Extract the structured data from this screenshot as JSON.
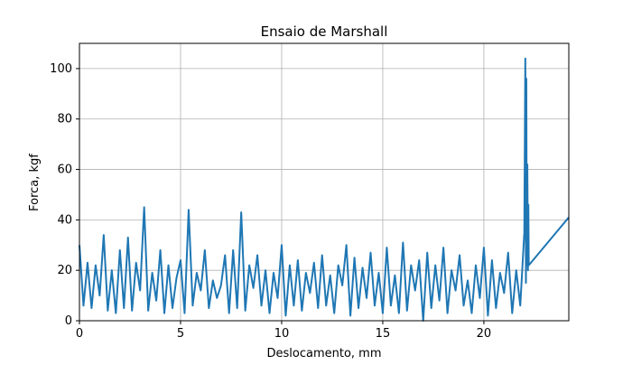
{
  "chart_data": {
    "type": "line",
    "title": "Ensaio de Marshall",
    "x_label": "Deslocamento, mm",
    "y_label": "Forca, kgf",
    "x": [
      0,
      0.2,
      0.4,
      0.6,
      0.8,
      1,
      1.2,
      1.4,
      1.6,
      1.8,
      2,
      2.2,
      2.4,
      2.6,
      2.8,
      3,
      3.2,
      3.4,
      3.6,
      3.8,
      4,
      4.2,
      4.4,
      4.6,
      4.8,
      5,
      5.2,
      5.4,
      5.6,
      5.8,
      6,
      6.2,
      6.4,
      6.6,
      6.8,
      7,
      7.2,
      7.4,
      7.6,
      7.8,
      8,
      8.2,
      8.4,
      8.6,
      8.8,
      9,
      9.2,
      9.4,
      9.6,
      9.8,
      10,
      10.2,
      10.4,
      10.6,
      10.8,
      11,
      11.2,
      11.4,
      11.6,
      11.8,
      12,
      12.2,
      12.4,
      12.6,
      12.8,
      13,
      13.2,
      13.4,
      13.6,
      13.8,
      14,
      14.2,
      14.4,
      14.6,
      14.8,
      15,
      15.2,
      15.4,
      15.6,
      15.8,
      16,
      16.2,
      16.4,
      16.6,
      16.8,
      17,
      17.2,
      17.4,
      17.6,
      17.8,
      18,
      18.2,
      18.4,
      18.6,
      18.8,
      19,
      19.2,
      19.4,
      19.6,
      19.8,
      20,
      20.2,
      20.4,
      20.6,
      20.8,
      21,
      21.2,
      21.4,
      21.6,
      21.8,
      22,
      22.05,
      22.08,
      22.1,
      22.12,
      22.15,
      22.18,
      22.2,
      22.22,
      24.2
    ],
    "series": [
      {
        "name": "Forca",
        "color": "#1f77b4",
        "values": [
          30,
          6,
          23,
          5,
          22,
          10,
          34,
          4,
          20,
          3,
          28,
          5,
          33,
          4,
          23,
          12,
          45,
          4,
          19,
          8,
          28,
          3,
          22,
          5,
          17,
          24,
          3,
          44,
          6,
          19,
          12,
          28,
          5,
          16,
          9,
          14,
          26,
          3,
          28,
          5,
          43,
          4,
          22,
          13,
          26,
          6,
          20,
          3,
          19,
          9,
          30,
          2,
          22,
          6,
          24,
          4,
          19,
          11,
          23,
          5,
          26,
          6,
          18,
          3,
          22,
          14,
          30,
          2,
          25,
          5,
          21,
          9,
          27,
          6,
          19,
          3,
          29,
          6,
          18,
          3,
          31,
          4,
          22,
          12,
          24,
          0,
          27,
          5,
          22,
          8,
          29,
          3,
          20,
          12,
          26,
          6,
          16,
          3,
          22,
          9,
          29,
          2,
          24,
          5,
          19,
          11,
          27,
          3,
          20,
          6,
          35,
          104,
          15,
          96,
          22,
          62,
          20,
          46,
          22,
          41
        ]
      }
    ],
    "xlim": [
      0,
      24.2
    ],
    "ylim": [
      0,
      110
    ],
    "xticks": [
      0,
      5,
      10,
      15,
      20
    ],
    "yticks": [
      0,
      20,
      40,
      60,
      80,
      100
    ],
    "grid": true
  }
}
